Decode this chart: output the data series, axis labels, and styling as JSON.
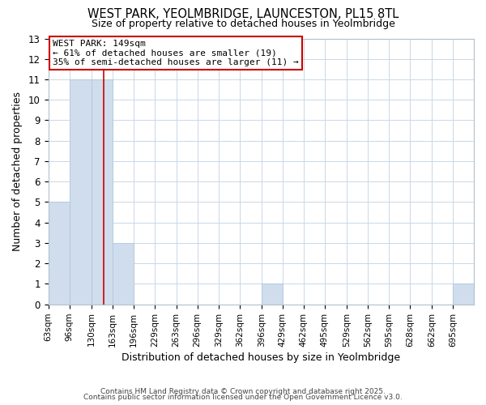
{
  "title1": "WEST PARK, YEOLMBRIDGE, LAUNCESTON, PL15 8TL",
  "title2": "Size of property relative to detached houses in Yeolmbridge",
  "xlabel": "Distribution of detached houses by size in Yeolmbridge",
  "ylabel": "Number of detached properties",
  "footer1": "Contains HM Land Registry data © Crown copyright and database right 2025.",
  "footer2": "Contains public sector information licensed under the Open Government Licence v3.0.",
  "bar_edges": [
    63,
    96,
    130,
    163,
    196,
    229,
    263,
    296,
    329,
    362,
    396,
    429,
    462,
    495,
    529,
    562,
    595,
    628,
    662,
    695,
    728
  ],
  "bar_heights": [
    5,
    11,
    11,
    3,
    0,
    0,
    0,
    0,
    0,
    0,
    1,
    0,
    0,
    0,
    0,
    0,
    0,
    0,
    0,
    1,
    0
  ],
  "bar_color": "#cfdded",
  "bar_edge_color": "#b0c8dc",
  "ref_line_x": 149,
  "ref_line_color": "#cc0000",
  "ylim": [
    0,
    13
  ],
  "yticks": [
    0,
    1,
    2,
    3,
    4,
    5,
    6,
    7,
    8,
    9,
    10,
    11,
    12,
    13
  ],
  "annotation_title": "WEST PARK: 149sqm",
  "annotation_line1": "← 61% of detached houses are smaller (19)",
  "annotation_line2": "35% of semi-detached houses are larger (11) →",
  "annotation_box_color": "#ffffff",
  "annotation_border_color": "#cc0000",
  "grid_color": "#c8d8e8",
  "bg_color": "#ffffff",
  "plot_bg_color": "#ffffff"
}
